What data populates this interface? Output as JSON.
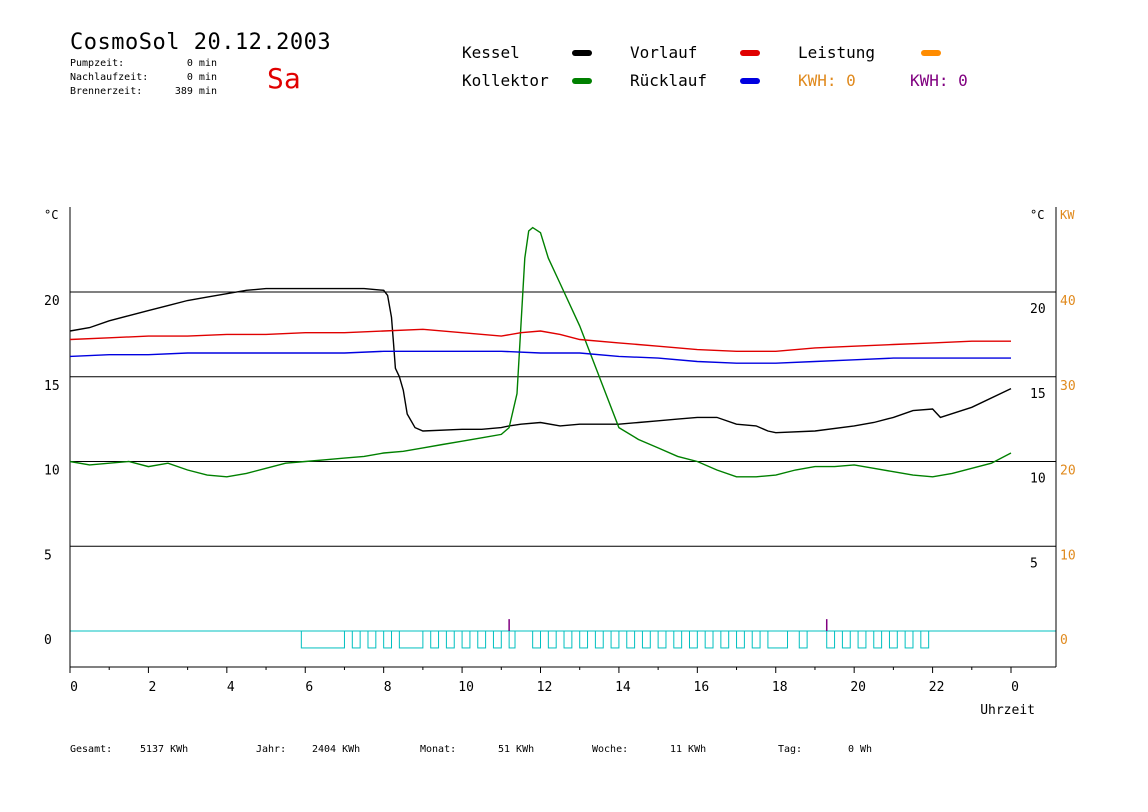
{
  "header": {
    "title": "CosmoSol 20.12.2003",
    "weekday": "Sa",
    "stats": [
      {
        "label": "Pumpzeit:",
        "value": "0 min"
      },
      {
        "label": "Nachlaufzeit:",
        "value": "0 min"
      },
      {
        "label": "Brennerzeit:",
        "value": "389 min"
      }
    ]
  },
  "legend": {
    "items": [
      {
        "label": "Kessel",
        "color": "#000000"
      },
      {
        "label": "Kollektor",
        "color": "#008000"
      },
      {
        "label": "Vorlauf",
        "color": "#e00000"
      },
      {
        "label": "Rücklauf",
        "color": "#0000e0"
      },
      {
        "label": "Leistung",
        "color": "#ff8c00"
      }
    ],
    "kwh": [
      {
        "label": "KWH: 0",
        "color": "#e08a1e"
      },
      {
        "label": "KWH: 0",
        "color": "#800080"
      }
    ]
  },
  "footer": [
    {
      "label": "Gesamt:",
      "value": "5137 KWh"
    },
    {
      "label": "Jahr:",
      "value": "2404 KWh"
    },
    {
      "label": "Monat:",
      "value": "51 KWh"
    },
    {
      "label": "Woche:",
      "value": "11 KWh"
    },
    {
      "label": "Tag:",
      "value": "0 Wh"
    }
  ],
  "chart_data": {
    "type": "line",
    "xlabel": "Uhrzeit",
    "x_ticks": [
      "0",
      "2",
      "4",
      "6",
      "8",
      "10",
      "12",
      "14",
      "16",
      "18",
      "20",
      "22",
      "0"
    ],
    "xlim": [
      0,
      24
    ],
    "ylabel_left": "°C",
    "ylabel_right_temp": "°C",
    "ylabel_right_power": "KW",
    "y_left_ticks": [
      "0",
      "5",
      "10",
      "15",
      "20"
    ],
    "y_right_temp_ticks": [
      "5",
      "10",
      "15",
      "20"
    ],
    "y_right_power_ticks": [
      "0",
      "10",
      "20",
      "30",
      "40"
    ],
    "ylim": [
      -2,
      25
    ],
    "grid_y": [
      5,
      10,
      15,
      20
    ],
    "series": [
      {
        "name": "Kessel",
        "color": "#000000",
        "x": [
          0,
          0.5,
          1,
          1.5,
          2,
          2.5,
          3,
          3.5,
          4,
          4.5,
          5,
          6,
          7,
          7.5,
          8,
          8.1,
          8.2,
          8.25,
          8.3,
          8.4,
          8.5,
          8.6,
          8.8,
          9,
          10,
          10.5,
          11,
          11.2,
          11.5,
          12,
          12.5,
          13,
          14,
          14.5,
          15,
          15.5,
          16,
          16.5,
          17,
          17.5,
          17.8,
          18,
          19,
          20,
          20.5,
          21,
          21.5,
          22,
          22.2,
          23,
          24
        ],
        "y": [
          17.7,
          17.9,
          18.3,
          18.6,
          18.9,
          19.2,
          19.5,
          19.7,
          19.9,
          20.1,
          20.2,
          20.2,
          20.2,
          20.2,
          20.1,
          19.8,
          18.5,
          17,
          15.5,
          15,
          14.2,
          12.8,
          12,
          11.8,
          11.9,
          11.9,
          12,
          12.1,
          12.2,
          12.3,
          12.1,
          12.2,
          12.2,
          12.3,
          12.4,
          12.5,
          12.6,
          12.6,
          12.2,
          12.1,
          11.8,
          11.7,
          11.8,
          12.1,
          12.3,
          12.6,
          13,
          13.1,
          12.6,
          13.2,
          14.3
        ]
      },
      {
        "name": "Kollektor",
        "color": "#008000",
        "x": [
          0,
          0.5,
          1,
          1.5,
          2,
          2.5,
          3,
          3.5,
          4,
          4.5,
          5,
          5.5,
          6,
          6.5,
          7,
          7.5,
          8,
          8.5,
          9,
          9.5,
          10,
          10.5,
          11,
          11.2,
          11.4,
          11.5,
          11.6,
          11.7,
          11.8,
          12,
          12.2,
          12.5,
          13,
          13.5,
          14,
          14.5,
          15,
          15.5,
          16,
          16.5,
          17,
          17.5,
          18,
          18.5,
          19,
          19.5,
          20,
          20.5,
          21,
          21.5,
          22,
          22.5,
          23,
          23.5,
          24
        ],
        "y": [
          10,
          9.8,
          9.9,
          10,
          9.7,
          9.9,
          9.5,
          9.2,
          9.1,
          9.3,
          9.6,
          9.9,
          10,
          10.1,
          10.2,
          10.3,
          10.5,
          10.6,
          10.8,
          11,
          11.2,
          11.4,
          11.6,
          12,
          14,
          18,
          22,
          23.6,
          23.8,
          23.5,
          22,
          20.5,
          18,
          15,
          12,
          11.3,
          10.8,
          10.3,
          10,
          9.5,
          9.1,
          9.1,
          9.2,
          9.5,
          9.7,
          9.7,
          9.8,
          9.6,
          9.4,
          9.2,
          9.1,
          9.3,
          9.6,
          9.9,
          10.5
        ]
      },
      {
        "name": "Vorlauf",
        "color": "#e00000",
        "x": [
          0,
          1,
          2,
          3,
          4,
          5,
          6,
          7,
          8,
          9,
          10,
          11,
          11.5,
          12,
          12.5,
          13,
          14,
          15,
          16,
          17,
          18,
          19,
          20,
          21,
          22,
          23,
          24
        ],
        "y": [
          17.2,
          17.3,
          17.4,
          17.4,
          17.5,
          17.5,
          17.6,
          17.6,
          17.7,
          17.8,
          17.6,
          17.4,
          17.6,
          17.7,
          17.5,
          17.2,
          17,
          16.8,
          16.6,
          16.5,
          16.5,
          16.7,
          16.8,
          16.9,
          17,
          17.1,
          17.1
        ]
      },
      {
        "name": "Rücklauf",
        "color": "#0000e0",
        "x": [
          0,
          1,
          2,
          3,
          4,
          5,
          6,
          7,
          8,
          9,
          10,
          11,
          12,
          13,
          14,
          15,
          16,
          17,
          18,
          19,
          20,
          21,
          22,
          23,
          24
        ],
        "y": [
          16.2,
          16.3,
          16.3,
          16.4,
          16.4,
          16.4,
          16.4,
          16.4,
          16.5,
          16.5,
          16.5,
          16.5,
          16.4,
          16.4,
          16.2,
          16.1,
          15.9,
          15.8,
          15.8,
          15.9,
          16,
          16.1,
          16.1,
          16.1,
          16.1
        ]
      }
    ],
    "pump_pulses": {
      "color": "#00c0c0",
      "baseline": 0,
      "pulse_low": -1,
      "intervals": [
        [
          5.9,
          7
        ],
        [
          7.2,
          7.4
        ],
        [
          7.6,
          7.8
        ],
        [
          8,
          8.2
        ],
        [
          8.4,
          9
        ],
        [
          9.2,
          9.4
        ],
        [
          9.6,
          9.8
        ],
        [
          10,
          10.2
        ],
        [
          10.4,
          10.6
        ],
        [
          10.8,
          11
        ],
        [
          11.2,
          11.35
        ],
        [
          11.8,
          12
        ],
        [
          12.2,
          12.4
        ],
        [
          12.6,
          12.8
        ],
        [
          13,
          13.2
        ],
        [
          13.4,
          13.6
        ],
        [
          13.8,
          14
        ],
        [
          14.2,
          14.4
        ],
        [
          14.6,
          14.8
        ],
        [
          15,
          15.2
        ],
        [
          15.4,
          15.6
        ],
        [
          15.8,
          16
        ],
        [
          16.2,
          16.4
        ],
        [
          16.6,
          16.8
        ],
        [
          17,
          17.2
        ],
        [
          17.4,
          17.6
        ],
        [
          17.8,
          18.3
        ],
        [
          18.6,
          18.8
        ],
        [
          19.3,
          19.5
        ],
        [
          19.7,
          19.9
        ],
        [
          20.1,
          20.3
        ],
        [
          20.5,
          20.7
        ],
        [
          20.9,
          21.1
        ],
        [
          21.3,
          21.5
        ],
        [
          21.7,
          21.9
        ]
      ]
    },
    "burner_spikes": {
      "color": "#800080",
      "x": [
        11.2,
        19.3
      ]
    },
    "legend_position": "top"
  }
}
